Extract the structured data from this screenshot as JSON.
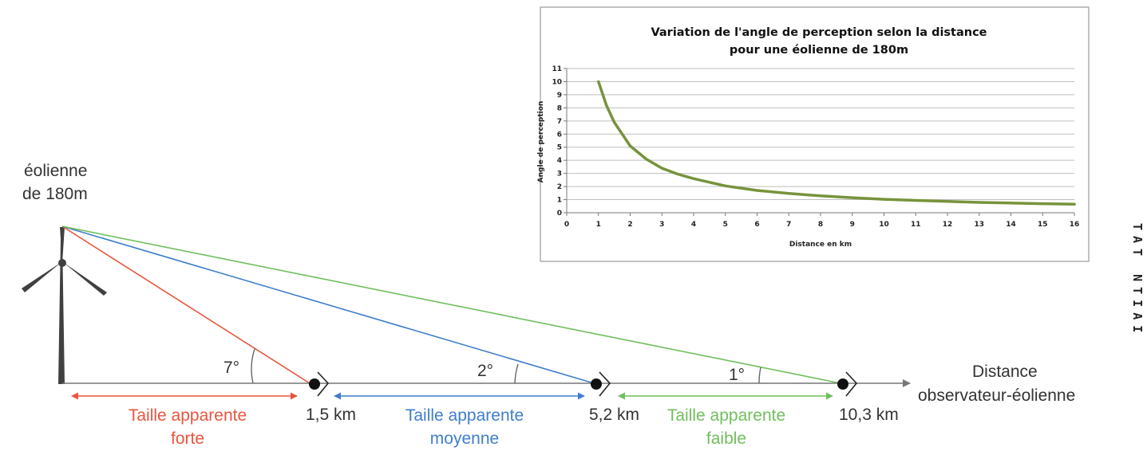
{
  "turbine_label": {
    "line1": "éolienne",
    "line2": "de 180m"
  },
  "observers": [
    {
      "distance_label": "1,5 km",
      "angle_label": "7°",
      "color": "#e8553e",
      "size_label": {
        "line1": "Taille apparente",
        "line2": "forte"
      }
    },
    {
      "distance_label": "5,2 km",
      "angle_label": "2°",
      "color": "#3f7ecb",
      "size_label": {
        "line1": "Taille apparente",
        "line2": "moyenne"
      }
    },
    {
      "distance_label": "10,3 km",
      "angle_label": "1°",
      "color": "#6fbf5c",
      "size_label": {
        "line1": "Taille apparente",
        "line2": "faible"
      }
    }
  ],
  "axis_label": {
    "line1": "Distance",
    "line2": "observateur-éolienne"
  },
  "edge_text": "TAT NTIAI",
  "chart_data": {
    "type": "line",
    "title": "Variation de l'angle de perception selon la distance",
    "subtitle": "pour une éolienne de 180m",
    "xlabel": "Distance en km",
    "ylabel": "Angle de perception",
    "xlim": [
      0,
      16
    ],
    "ylim": [
      0,
      11
    ],
    "xticks": [
      0,
      1,
      2,
      3,
      4,
      5,
      6,
      7,
      8,
      9,
      10,
      11,
      12,
      13,
      14,
      15,
      16
    ],
    "yticks": [
      0,
      1,
      2,
      3,
      4,
      5,
      6,
      7,
      8,
      9,
      10,
      11
    ],
    "grid": true,
    "line_color": "#77933c",
    "series": [
      {
        "x": [
          1,
          1.25,
          1.5,
          2,
          2.5,
          3,
          3.5,
          4,
          5,
          6,
          7,
          8,
          9,
          10,
          11,
          12,
          13,
          14,
          15,
          16
        ],
        "y": [
          10,
          8.2,
          6.9,
          5.1,
          4.1,
          3.4,
          2.95,
          2.6,
          2.05,
          1.7,
          1.47,
          1.29,
          1.15,
          1.03,
          0.94,
          0.86,
          0.79,
          0.74,
          0.69,
          0.65
        ]
      }
    ]
  }
}
